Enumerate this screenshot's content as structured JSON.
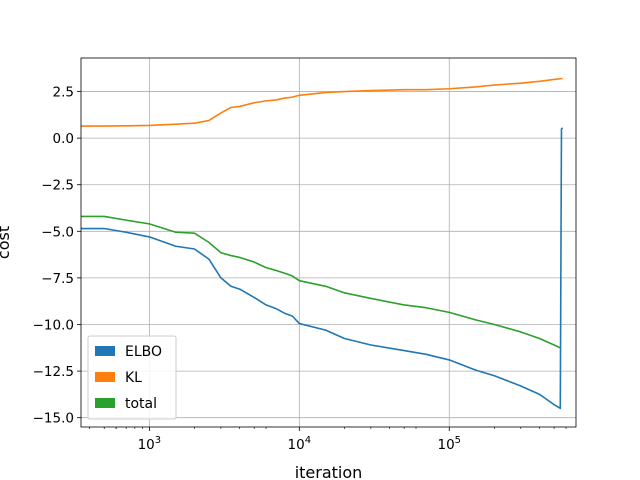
{
  "chart_data": {
    "type": "line",
    "title": "",
    "xlabel": "iteration",
    "ylabel": "cost",
    "xscale": "log",
    "xlim": [
      350,
      700000
    ],
    "ylim": [
      -15.5,
      4.3
    ],
    "grid": true,
    "legend": "lower-left",
    "x_ticks": [
      {
        "value": 1000,
        "base": "10",
        "exp": "3"
      },
      {
        "value": 10000,
        "base": "10",
        "exp": "4"
      },
      {
        "value": 100000,
        "base": "10",
        "exp": "5"
      }
    ],
    "y_ticks": [
      {
        "value": 2.5,
        "label": "2.5"
      },
      {
        "value": 0,
        "label": "0.0"
      },
      {
        "value": -2.5,
        "label": "−2.5"
      },
      {
        "value": -5,
        "label": "−5.0"
      },
      {
        "value": -7.5,
        "label": "−7.5"
      },
      {
        "value": -10,
        "label": "−10.0"
      },
      {
        "value": -12.5,
        "label": "−12.5"
      },
      {
        "value": -15,
        "label": "−15.0"
      }
    ],
    "series": [
      {
        "name": "ELBO",
        "color": "#1f77b4",
        "x": [
          350,
          500,
          700,
          1000,
          1500,
          2000,
          2500,
          3000,
          3500,
          4000,
          5000,
          6000,
          7000,
          8000,
          9000,
          10000,
          15000,
          20000,
          30000,
          50000,
          70000,
          100000,
          150000,
          200000,
          300000,
          400000,
          500000,
          550000,
          560000,
          570000
        ],
        "values": [
          -4.85,
          -4.85,
          -5.05,
          -5.3,
          -5.8,
          -5.95,
          -6.5,
          -7.5,
          -7.95,
          -8.1,
          -8.55,
          -8.95,
          -9.15,
          -9.4,
          -9.55,
          -9.95,
          -10.3,
          -10.75,
          -11.1,
          -11.4,
          -11.6,
          -11.9,
          -12.45,
          -12.75,
          -13.3,
          -13.75,
          -14.3,
          -14.5,
          0.5,
          0.55
        ]
      },
      {
        "name": "KL",
        "color": "#ff7f0e",
        "x": [
          350,
          500,
          700,
          1000,
          1500,
          2000,
          2500,
          3000,
          3500,
          4000,
          5000,
          6000,
          7000,
          8000,
          9000,
          10000,
          15000,
          20000,
          30000,
          50000,
          70000,
          100000,
          150000,
          200000,
          300000,
          400000,
          500000,
          570000
        ],
        "values": [
          0.65,
          0.65,
          0.66,
          0.68,
          0.75,
          0.8,
          0.95,
          1.35,
          1.65,
          1.7,
          1.9,
          2.0,
          2.05,
          2.15,
          2.2,
          2.3,
          2.45,
          2.5,
          2.55,
          2.6,
          2.6,
          2.65,
          2.75,
          2.85,
          2.95,
          3.05,
          3.15,
          3.2
        ]
      },
      {
        "name": "total",
        "color": "#2ca02c",
        "x": [
          350,
          500,
          700,
          1000,
          1500,
          2000,
          2500,
          3000,
          3500,
          4000,
          5000,
          6000,
          7000,
          8000,
          9000,
          10000,
          15000,
          20000,
          30000,
          50000,
          70000,
          100000,
          150000,
          200000,
          300000,
          400000,
          500000,
          550000
        ],
        "values": [
          -4.2,
          -4.2,
          -4.4,
          -4.6,
          -5.05,
          -5.1,
          -5.6,
          -6.15,
          -6.3,
          -6.4,
          -6.65,
          -6.95,
          -7.1,
          -7.25,
          -7.4,
          -7.65,
          -7.95,
          -8.3,
          -8.6,
          -8.95,
          -9.1,
          -9.35,
          -9.75,
          -10.0,
          -10.4,
          -10.75,
          -11.1,
          -11.25
        ]
      }
    ]
  }
}
